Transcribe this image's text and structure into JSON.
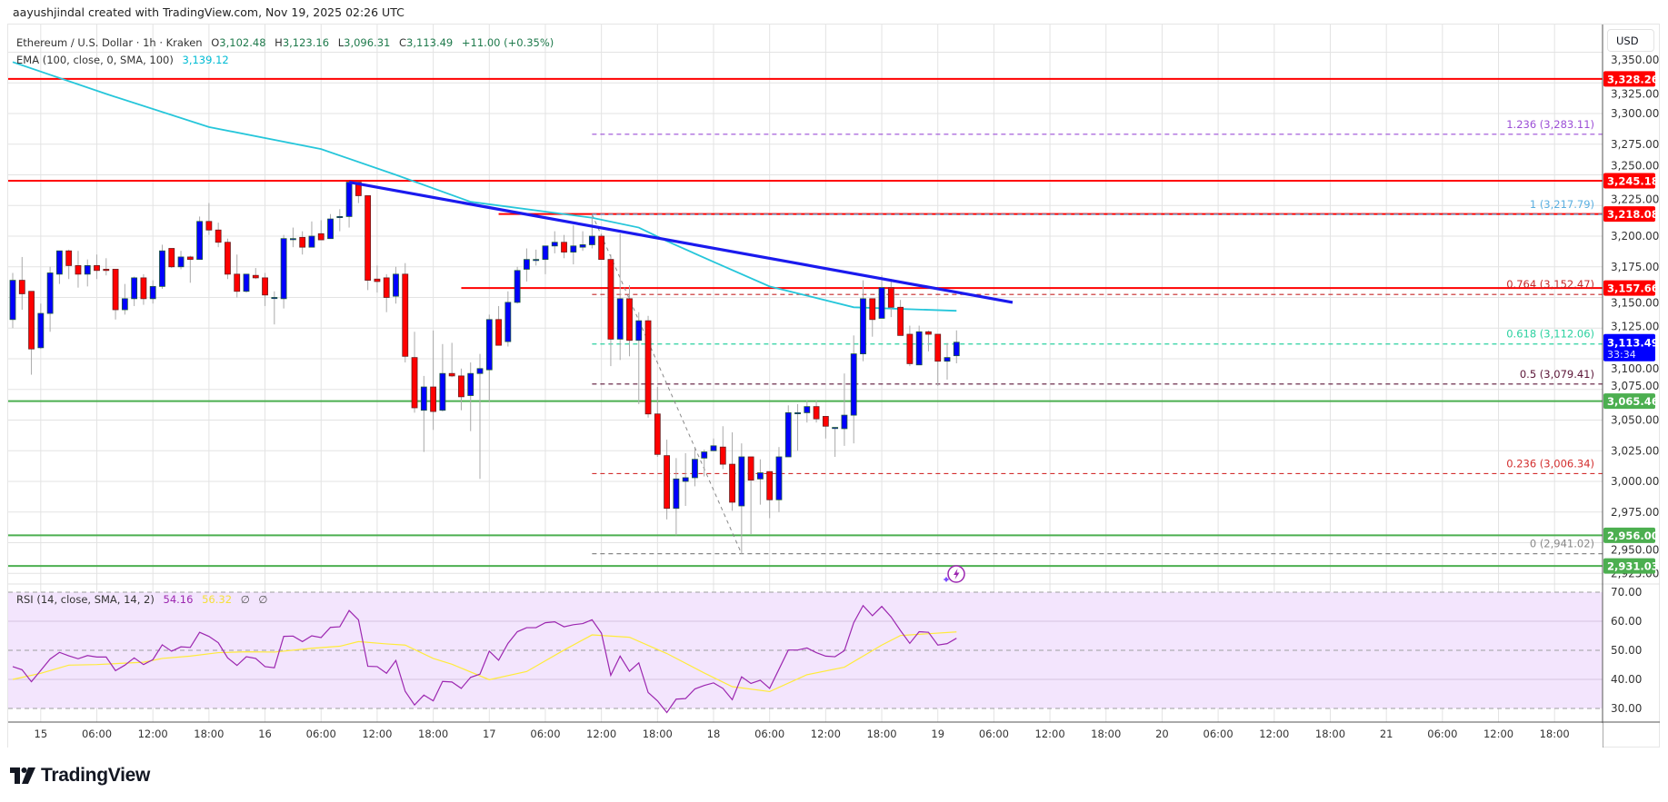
{
  "credit": "aayushjindal created with TradingView.com, Nov 19, 2025 02:26 UTC",
  "legend": {
    "symbol": "Ethereum / U.S. Dollar · 1h · Kraken",
    "o_label": "O",
    "o": "3,102.48",
    "h_label": "H",
    "h": "3,123.16",
    "l_label": "L",
    "l": "3,096.31",
    "c_label": "C",
    "c": "3,113.49",
    "change": "+11.00 (+0.35%)",
    "ema_label": "EMA (100, close, 0, SMA, 100)",
    "ema_value": "3,139.12"
  },
  "rsi_legend": {
    "label": "RSI (14, close, SMA, 14, 2)",
    "rsi_value": "54.16",
    "sma_value": "56.32",
    "extra1": "∅",
    "extra2": "∅"
  },
  "currency_button": "USD",
  "logo_text": "TradingView",
  "colors": {
    "up_body": "#0000ff",
    "down_body": "#ff0000",
    "ema": "#26c6da",
    "trendline": "#1a1aee",
    "resistance": "#ff0000",
    "support": "#4caf50",
    "rsi": "#9c27b0",
    "rsi_sma": "#ffeb3b",
    "rsi_band": "#f3e5fd",
    "last_price": "#0000ff"
  },
  "chart_data": {
    "type": "candlestick",
    "interval": "1h",
    "start": "2025-11-14 21:00",
    "candles_ohlc": [
      [
        3132,
        3170,
        3125,
        3164
      ],
      [
        3164,
        3183,
        3140,
        3153
      ],
      [
        3155,
        3155,
        3087,
        3108
      ],
      [
        3109,
        3145,
        3108,
        3137
      ],
      [
        3137,
        3175,
        3122,
        3170
      ],
      [
        3169,
        3188,
        3161,
        3188
      ],
      [
        3188,
        3189,
        3165,
        3176
      ],
      [
        3176,
        3188,
        3158,
        3169
      ],
      [
        3169,
        3181,
        3159,
        3176
      ],
      [
        3176,
        3185,
        3165,
        3172
      ],
      [
        3173,
        3182,
        3168,
        3172
      ],
      [
        3173,
        3173,
        3132,
        3140
      ],
      [
        3140,
        3161,
        3136,
        3149
      ],
      [
        3149,
        3167,
        3143,
        3166
      ],
      [
        3166,
        3169,
        3144,
        3149
      ],
      [
        3149,
        3164,
        3145,
        3159
      ],
      [
        3159,
        3193,
        3157,
        3188
      ],
      [
        3190,
        3190,
        3174,
        3175
      ],
      [
        3175,
        3188,
        3173,
        3183
      ],
      [
        3183,
        3184,
        3162,
        3181
      ],
      [
        3181,
        3216,
        3181,
        3212
      ],
      [
        3212,
        3227,
        3201,
        3205
      ],
      [
        3205,
        3211,
        3191,
        3195
      ],
      [
        3195,
        3198,
        3165,
        3169
      ],
      [
        3169,
        3185,
        3150,
        3155
      ],
      [
        3155,
        3169,
        3154,
        3169
      ],
      [
        3168,
        3174,
        3165,
        3166
      ],
      [
        3166,
        3170,
        3143,
        3152
      ],
      [
        3150,
        3155,
        3128,
        3150
      ],
      [
        3149,
        3201,
        3141,
        3198
      ],
      [
        3198,
        3207,
        3191,
        3198
      ],
      [
        3199,
        3204,
        3185,
        3191
      ],
      [
        3191,
        3212,
        3191,
        3200
      ],
      [
        3202,
        3213,
        3197,
        3197
      ],
      [
        3198,
        3218,
        3198,
        3214
      ],
      [
        3216,
        3222,
        3204,
        3216
      ],
      [
        3216,
        3244,
        3207,
        3244
      ],
      [
        3244,
        3244,
        3227,
        3233
      ],
      [
        3233,
        3233,
        3156,
        3164
      ],
      [
        3165,
        3176,
        3154,
        3163
      ],
      [
        3166,
        3169,
        3138,
        3150
      ],
      [
        3151,
        3175,
        3145,
        3169
      ],
      [
        3169,
        3178,
        3097,
        3102
      ],
      [
        3101,
        3122,
        3056,
        3060
      ],
      [
        3058,
        3086,
        3024,
        3077
      ],
      [
        3077,
        3123,
        3042,
        3057
      ],
      [
        3058,
        3112,
        3057,
        3088
      ],
      [
        3088,
        3113,
        3085,
        3086
      ],
      [
        3086,
        3092,
        3058,
        3069
      ],
      [
        3070,
        3097,
        3041,
        3088
      ],
      [
        3088,
        3104,
        3002,
        3092
      ],
      [
        3091,
        3136,
        3065,
        3132
      ],
      [
        3132,
        3143,
        3111,
        3111
      ],
      [
        3114,
        3155,
        3110,
        3146
      ],
      [
        3146,
        3175,
        3145,
        3172
      ],
      [
        3173,
        3190,
        3163,
        3181
      ],
      [
        3181,
        3189,
        3176,
        3181
      ],
      [
        3181,
        3192,
        3169,
        3192
      ],
      [
        3192,
        3204,
        3186,
        3195
      ],
      [
        3195,
        3201,
        3182,
        3187
      ],
      [
        3187,
        3209,
        3177,
        3192
      ],
      [
        3191,
        3204,
        3188,
        3193
      ],
      [
        3193,
        3217,
        3190,
        3200
      ],
      [
        3200,
        3202,
        3181,
        3181
      ],
      [
        3181,
        3185,
        3094,
        3116
      ],
      [
        3116,
        3202,
        3099,
        3149
      ],
      [
        3149,
        3160,
        3102,
        3115
      ],
      [
        3115,
        3138,
        3063,
        3131
      ],
      [
        3131,
        3135,
        3052,
        3055
      ],
      [
        3055,
        3077,
        3020,
        3022
      ],
      [
        3021,
        3034,
        2969,
        2978
      ],
      [
        2978,
        3019,
        2956,
        3002
      ],
      [
        3000,
        3023,
        2980,
        3003
      ],
      [
        3003,
        3027,
        2996,
        3018
      ],
      [
        3019,
        3026,
        3004,
        3024
      ],
      [
        3025,
        3035,
        3025,
        3029
      ],
      [
        3028,
        3045,
        3010,
        3014
      ],
      [
        3014,
        3040,
        2976,
        2983
      ],
      [
        2980,
        3031,
        2941,
        3020
      ],
      [
        3020,
        3020,
        2957,
        3001
      ],
      [
        3002,
        3018,
        2981,
        3007
      ],
      [
        3008,
        3008,
        2970,
        2985
      ],
      [
        2985,
        3028,
        2975,
        3020
      ],
      [
        3020,
        3062,
        3020,
        3056
      ],
      [
        3056,
        3063,
        3025,
        3056
      ],
      [
        3056,
        3066,
        3048,
        3061
      ],
      [
        3061,
        3066,
        3048,
        3051
      ],
      [
        3053,
        3053,
        3035,
        3045
      ],
      [
        3044,
        3044,
        3020,
        3044
      ],
      [
        3043,
        3088,
        3029,
        3054
      ],
      [
        3054,
        3119,
        3031,
        3104
      ],
      [
        3104,
        3164,
        3098,
        3149
      ],
      [
        3149,
        3149,
        3118,
        3132
      ],
      [
        3133,
        3168,
        3133,
        3158
      ],
      [
        3158,
        3165,
        3134,
        3142
      ],
      [
        3142,
        3148,
        3119,
        3119
      ],
      [
        3120,
        3127,
        3094,
        3096
      ],
      [
        3095,
        3127,
        3095,
        3122
      ],
      [
        3122,
        3123,
        3106,
        3120
      ],
      [
        3120,
        3120,
        3078,
        3098
      ],
      [
        3098,
        3113,
        3083,
        3101
      ],
      [
        3102.48,
        3123.16,
        3096.31,
        3113.49
      ]
    ],
    "ema100": [
      [
        "2025-11-14 21:00",
        3342
      ],
      [
        "2025-11-15 07:00",
        3316
      ],
      [
        "2025-11-15 18:00",
        3289
      ],
      [
        "2025-11-16 06:00",
        3271
      ],
      [
        "2025-11-16 14:00",
        3250
      ],
      [
        "2025-11-16 22:00",
        3228
      ],
      [
        "2025-11-17 11:00",
        3215
      ],
      [
        "2025-11-17 16:00",
        3207
      ],
      [
        "2025-11-17 19:00",
        3196
      ],
      [
        "2025-11-18 00:00",
        3179
      ],
      [
        "2025-11-18 06:00",
        3159
      ],
      [
        "2025-11-18 15:00",
        3142
      ],
      [
        "2025-11-19 02:00",
        3139.12
      ]
    ],
    "trendline": [
      [
        "2025-11-16 09:00",
        3244
      ],
      [
        "2025-11-19 08:00",
        3146
      ]
    ],
    "levels": [
      {
        "price": 3328.26,
        "label": "3,328.26",
        "kind": "resistance",
        "from": null
      },
      {
        "price": 3245.18,
        "label": "3,245.18",
        "kind": "resistance",
        "from": null
      },
      {
        "price": 3218.08,
        "label": "3,218.08",
        "kind": "resistance",
        "from": "2025-11-17 01:00"
      },
      {
        "price": 3157.66,
        "label": "3,157.66",
        "kind": "resistance",
        "from": "2025-11-16 21:00"
      },
      {
        "price": 3065.46,
        "label": "3,065.46",
        "kind": "support",
        "from": null
      },
      {
        "price": 2956.0,
        "label": "2,956.00",
        "kind": "support",
        "from": null
      },
      {
        "price": 2931.03,
        "label": "2,931.03",
        "kind": "support",
        "from": null
      }
    ],
    "fib": {
      "from": "2025-11-17 11:00",
      "anchor": [
        [
          "2025-11-17 11:00",
          3217.79
        ],
        [
          "2025-11-18 03:00",
          2941.02
        ]
      ],
      "levels": [
        {
          "ratio": "1.236",
          "price": 3283.11,
          "label": "1.236 (3,283.11)",
          "color": "#9c4fd6"
        },
        {
          "ratio": "1",
          "price": 3217.79,
          "label": "1 (3,217.79)",
          "color": "#5aafe0"
        },
        {
          "ratio": "0.764",
          "price": 3152.47,
          "label": "0.764 (3,152.47)",
          "color": "#c62828"
        },
        {
          "ratio": "0.618",
          "price": 3112.06,
          "label": "0.618 (3,112.06)",
          "color": "#2bd1a0"
        },
        {
          "ratio": "0.5",
          "price": 3079.41,
          "label": "0.5 (3,079.41)",
          "color": "#5c1638"
        },
        {
          "ratio": "0.236",
          "price": 3006.34,
          "label": "0.236 (3,006.34)",
          "color": "#d32f2f"
        },
        {
          "ratio": "0",
          "price": 2941.02,
          "label": "0 (2,941.02)",
          "color": "#888888"
        }
      ]
    },
    "last_price": {
      "price": 3113.49,
      "label": "3,113.49",
      "countdown": "33:34"
    },
    "price_ticks": [
      "3,350.00",
      "3,325.00",
      "3,300.00",
      "3,275.00",
      "3,250.00",
      "3,225.00",
      "3,200.00",
      "3,175.00",
      "3,150.00",
      "3,125.00",
      "3,100.00",
      "3,075.00",
      "3,050.00",
      "3,025.00",
      "3,000.00",
      "2,975.00",
      "2,950.00",
      "2,925.00"
    ],
    "time_ticks": [
      "15",
      "06:00",
      "12:00",
      "18:00",
      "16",
      "06:00",
      "12:00",
      "18:00",
      "17",
      "06:00",
      "12:00",
      "18:00",
      "18",
      "06:00",
      "12:00",
      "18:00",
      "19",
      "06:00",
      "12:00",
      "18:00",
      "20",
      "06:00",
      "12:00",
      "18:00",
      "21",
      "06:00",
      "12:00",
      "18:00"
    ],
    "rsi": {
      "ylim": [
        30,
        70
      ],
      "ticks": [
        "70.00",
        "60.00",
        "50.00",
        "40.00",
        "30.00"
      ],
      "values": [
        44.4,
        43.3,
        39.2,
        43.1,
        47.0,
        49.3,
        48.1,
        47.1,
        48.2,
        47.7,
        47.7,
        43.0,
        44.9,
        47.4,
        45.1,
        46.8,
        51.9,
        49.7,
        51.2,
        51.0,
        56.2,
        54.8,
        52.6,
        47.4,
        44.8,
        47.8,
        47.2,
        44.4,
        44.0,
        54.8,
        54.9,
        53.0,
        55.0,
        54.4,
        57.9,
        58.1,
        63.7,
        60.5,
        44.5,
        44.4,
        42.1,
        46.5,
        35.9,
        31.2,
        34.6,
        32.6,
        39.3,
        39.1,
        36.9,
        40.7,
        41.8,
        49.7,
        46.6,
        52.4,
        56.4,
        57.8,
        57.8,
        59.5,
        59.8,
        58.1,
        58.8,
        59.2,
        60.5,
        55.9,
        41.4,
        48.0,
        42.8,
        45.7,
        35.5,
        32.6,
        28.6,
        33.2,
        33.4,
        36.7,
        37.9,
        38.8,
        36.9,
        33.0,
        40.9,
        38.6,
        39.7,
        36.9,
        43.5,
        50.1,
        50.1,
        50.8,
        49.2,
        48.0,
        47.8,
        49.9,
        59.5,
        65.4,
        61.9,
        65.1,
        61.5,
        56.8,
        52.4,
        56.4,
        56.2,
        51.8,
        52.3,
        54.16
      ],
      "sma": [
        [
          "2025-11-14 21:00",
          40.0
        ],
        [
          "2025-11-15 00:00",
          42.1
        ],
        [
          "2025-11-15 03:00",
          44.9
        ],
        [
          "2025-11-15 06:00",
          45.1
        ],
        [
          "2025-11-15 11:00",
          45.9
        ],
        [
          "2025-11-15 13:00",
          47.2
        ],
        [
          "2025-11-15 16:00",
          48.0
        ],
        [
          "2025-11-15 19:00",
          49.2
        ],
        [
          "2025-11-15 22:00",
          49.5
        ],
        [
          "2025-11-16 01:00",
          49.4
        ],
        [
          "2025-11-16 05:00",
          50.7
        ],
        [
          "2025-11-16 08:00",
          51.4
        ],
        [
          "2025-11-16 10:00",
          53.0
        ],
        [
          "2025-11-16 13:00",
          52.2
        ],
        [
          "2025-11-16 15:00",
          51.8
        ],
        [
          "2025-11-16 18:00",
          47.2
        ],
        [
          "2025-11-16 20:00",
          45.2
        ],
        [
          "2025-11-17 00:00",
          39.9
        ],
        [
          "2025-11-17 04:00",
          42.7
        ],
        [
          "2025-11-17 08:00",
          50.1
        ],
        [
          "2025-11-17 11:00",
          55.3
        ],
        [
          "2025-11-17 15:00",
          54.5
        ],
        [
          "2025-11-17 19:00",
          48.9
        ],
        [
          "2025-11-17 23:00",
          42.2
        ],
        [
          "2025-11-18 02:00",
          37.5
        ],
        [
          "2025-11-18 06:00",
          35.8
        ],
        [
          "2025-11-18 10:00",
          41.6
        ],
        [
          "2025-11-18 14:00",
          44.2
        ],
        [
          "2025-11-18 18:00",
          51.8
        ],
        [
          "2025-11-18 20:00",
          55.1
        ],
        [
          "2025-11-19 02:00",
          56.32
        ]
      ]
    }
  }
}
